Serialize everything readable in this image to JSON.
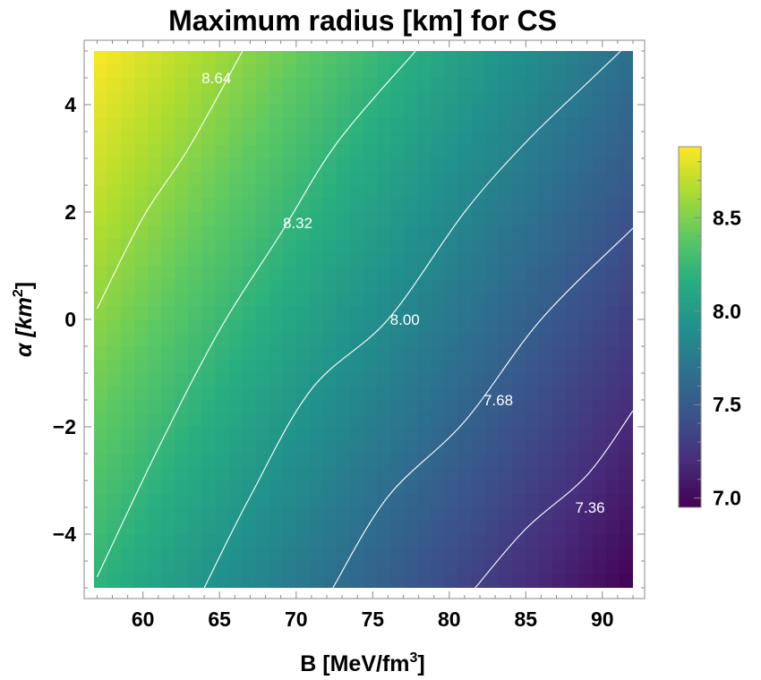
{
  "chart_data": {
    "type": "contour",
    "title": "Maximum radius [km] for CS",
    "xlabel": {
      "main": "B [MeV/fm",
      "sup": "3",
      "end": "]"
    },
    "ylabel": {
      "main": "α [km",
      "sup": "2",
      "end": "]"
    },
    "xlim": [
      56.8,
      92.0
    ],
    "ylim": [
      -5.0,
      5.0
    ],
    "x_ticks": [
      60,
      65,
      70,
      75,
      80,
      85,
      90
    ],
    "y_ticks": [
      4,
      2,
      0,
      -2,
      -4
    ],
    "y_tick_labels": [
      "4",
      "2",
      "0",
      "−2",
      "−4"
    ],
    "colorscale": "viridis",
    "colorbar": {
      "range": [
        6.95,
        8.88
      ],
      "ticks": [
        7.0,
        7.5,
        8.0,
        8.5
      ],
      "tick_labels": [
        "7.0",
        "7.5",
        "8.0",
        "8.5"
      ]
    },
    "grid_samples": {
      "x": [
        57,
        92
      ],
      "y": [
        -5,
        5
      ],
      "z": [
        [
          8.19,
          6.95
        ],
        [
          8.88,
          7.65
        ]
      ]
    },
    "contours": [
      {
        "level": 8.64,
        "label": "8.64",
        "points": [
          [
            57.0,
            0.2
          ],
          [
            60.0,
            1.9
          ],
          [
            63.0,
            3.2
          ],
          [
            66.5,
            5.0
          ]
        ]
      },
      {
        "level": 8.32,
        "label": "8.32",
        "points": [
          [
            57.0,
            -4.8
          ],
          [
            61.0,
            -2.4
          ],
          [
            65.0,
            -0.2
          ],
          [
            69.0,
            1.6
          ],
          [
            72.7,
            3.3
          ],
          [
            77.8,
            5.0
          ]
        ]
      },
      {
        "level": 8.0,
        "label": "8.00",
        "points": [
          [
            64.0,
            -5.0
          ],
          [
            67.0,
            -3.3
          ],
          [
            71.0,
            -1.3
          ],
          [
            76.0,
            0.0
          ],
          [
            81.0,
            2.0
          ],
          [
            85.0,
            3.3
          ],
          [
            89.0,
            4.4
          ],
          [
            91.2,
            5.0
          ]
        ]
      },
      {
        "level": 7.68,
        "label": "7.68",
        "points": [
          [
            72.4,
            -5.0
          ],
          [
            76.0,
            -3.3
          ],
          [
            81.0,
            -1.9
          ],
          [
            86.0,
            0.0
          ],
          [
            92.0,
            1.7
          ]
        ]
      },
      {
        "level": 7.36,
        "label": "7.36",
        "points": [
          [
            81.7,
            -5.0
          ],
          [
            85.0,
            -3.9
          ],
          [
            89.0,
            -2.9
          ],
          [
            92.0,
            -1.7
          ]
        ]
      }
    ],
    "contour_labels": [
      {
        "text": "8.64",
        "x": 64.8,
        "y": 4.5
      },
      {
        "text": "8.32",
        "x": 70.1,
        "y": 1.8
      },
      {
        "text": "8.00",
        "x": 77.1,
        "y": 0.0
      },
      {
        "text": "7.68",
        "x": 83.2,
        "y": -1.5
      },
      {
        "text": "7.36",
        "x": 89.2,
        "y": -3.5
      }
    ]
  }
}
